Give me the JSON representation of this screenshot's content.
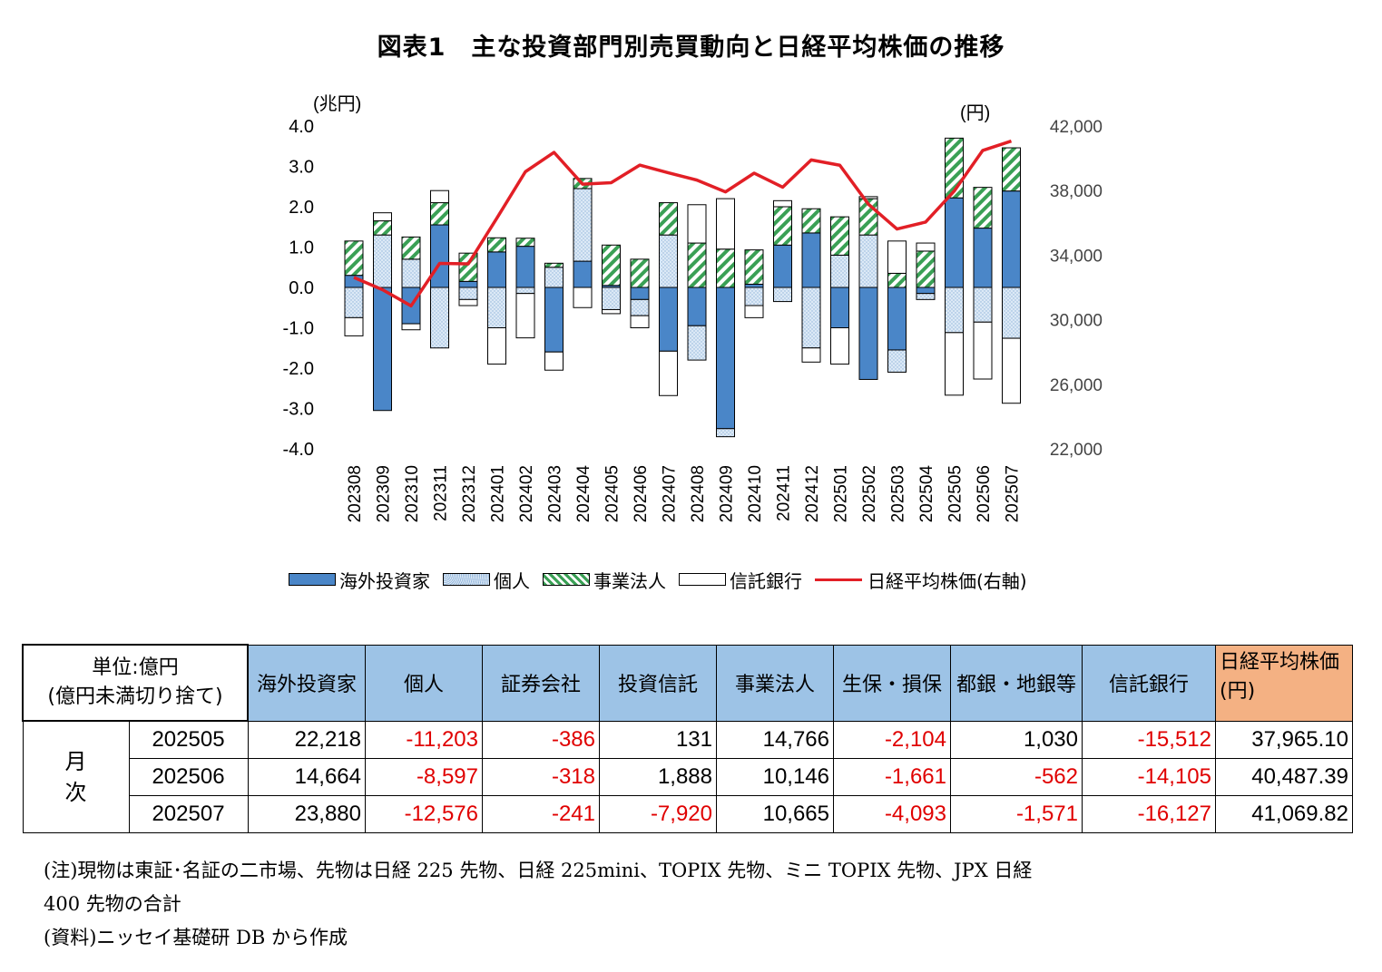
{
  "title": "図表1　主な投資部門別売買動向と日経平均株価の推移",
  "chart_data": {
    "type": "bar",
    "stacked": true,
    "left_axis_unit": "(兆円)",
    "right_axis_unit": "(円)",
    "ylim_left": [
      -4.0,
      4.0
    ],
    "ylim_right": [
      22000,
      42000
    ],
    "left_ticks": [
      "4.0",
      "3.0",
      "2.0",
      "1.0",
      "0.0",
      "-1.0",
      "-2.0",
      "-3.0",
      "-4.0"
    ],
    "right_ticks": [
      "42,000",
      "38,000",
      "34,000",
      "30,000",
      "26,000",
      "22,000"
    ],
    "categories": [
      "202308",
      "202309",
      "202310",
      "202311",
      "202312",
      "202401",
      "202402",
      "202403",
      "202404",
      "202405",
      "202406",
      "202407",
      "202408",
      "202409",
      "202410",
      "202411",
      "202412",
      "202501",
      "202502",
      "202503",
      "202504",
      "202505",
      "202506",
      "202507"
    ],
    "series": [
      {
        "name": "海外投資家",
        "color": "#4a86c8",
        "values": [
          0.3,
          -3.05,
          -0.9,
          1.55,
          0.15,
          0.88,
          1.02,
          -1.6,
          0.65,
          0.05,
          -0.3,
          -1.58,
          -0.95,
          -3.5,
          0.08,
          1.05,
          1.35,
          -1.0,
          -2.28,
          -1.55,
          -0.15,
          2.22,
          1.47,
          2.39
        ]
      },
      {
        "name": "個人",
        "color": "#d9e8f5",
        "values": [
          -0.75,
          1.3,
          0.7,
          -1.5,
          -0.3,
          -1.0,
          -0.15,
          0.5,
          1.8,
          -0.55,
          -0.4,
          1.3,
          -0.85,
          -0.2,
          -0.45,
          -0.35,
          -1.5,
          0.8,
          1.3,
          -0.55,
          -0.15,
          -1.12,
          -0.86,
          -1.26
        ]
      },
      {
        "name": "事業法人",
        "color": "#3aa055",
        "values": [
          0.85,
          0.35,
          0.55,
          0.55,
          0.7,
          0.35,
          0.2,
          0.1,
          0.25,
          1.0,
          0.7,
          0.8,
          1.1,
          0.95,
          0.85,
          0.95,
          0.6,
          0.95,
          0.9,
          0.35,
          0.9,
          1.48,
          1.01,
          1.07
        ]
      },
      {
        "name": "信託銀行",
        "color": "#ffffff",
        "values": [
          -0.45,
          0.2,
          -0.15,
          0.3,
          -0.15,
          -0.9,
          -1.1,
          -0.45,
          -0.5,
          -0.1,
          -0.3,
          -1.1,
          0.95,
          1.25,
          -0.3,
          0.15,
          -0.35,
          -0.9,
          0.05,
          0.8,
          0.2,
          -1.55,
          -1.41,
          -1.61
        ]
      }
    ],
    "line": {
      "name": "日経平均株価(右軸)",
      "color": "#e21f26",
      "values": [
        32620,
        31860,
        30860,
        33490,
        33460,
        36290,
        39170,
        40370,
        38400,
        38490,
        39580,
        39100,
        38650,
        37920,
        39080,
        38210,
        39900,
        39570,
        37160,
        35620,
        36050,
        37965,
        40487,
        41070
      ]
    }
  },
  "legend": [
    "海外投資家",
    "個人",
    "事業法人",
    "信託銀行",
    "日経平均株価(右軸)"
  ],
  "table": {
    "unit_label": [
      "単位:億円",
      "(億円未満切り捨て)"
    ],
    "headers": [
      "海外投資家",
      "個人",
      "証券会社",
      "投資信託",
      "事業法人",
      "生保・損保",
      "都銀・地銀等",
      "信託銀行"
    ],
    "nikkei_header": [
      "日経平均株価",
      "(円)"
    ],
    "group_label": [
      "月",
      "次"
    ],
    "rows": [
      {
        "month": "202505",
        "values": [
          "22,218",
          "-11,203",
          "-386",
          "131",
          "14,766",
          "-2,104",
          "1,030",
          "-15,512"
        ],
        "nikkei": "37,965.10"
      },
      {
        "month": "202506",
        "values": [
          "14,664",
          "-8,597",
          "-318",
          "1,888",
          "10,146",
          "-1,661",
          "-562",
          "-14,105"
        ],
        "nikkei": "40,487.39"
      },
      {
        "month": "202507",
        "values": [
          "23,880",
          "-12,576",
          "-241",
          "-7,920",
          "10,665",
          "-4,093",
          "-1,571",
          "-16,127"
        ],
        "nikkei": "41,069.82"
      }
    ]
  },
  "notes": [
    "(注)現物は東証･名証の二市場、先物は日経 225 先物、日経 225mini、TOPIX 先物、ミニ TOPIX 先物、JPX 日経",
    "400 先物の合計",
    "(資料)ニッセイ基礎研 DB から作成"
  ]
}
